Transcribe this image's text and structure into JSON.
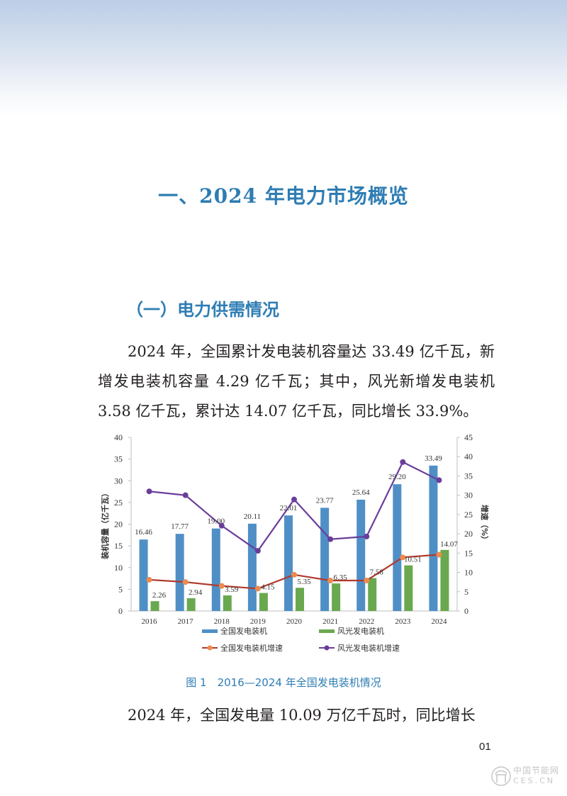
{
  "chapter": {
    "title": "一、2024 年电力市场概览"
  },
  "section": {
    "title": "（一）电力供需情况"
  },
  "paragraphs": [
    "2024 年，全国累计发电装机容量达 33.49 亿千瓦，新增发电装机容量 4.29 亿千瓦；其中，风光新增发电装机 3.58 亿千瓦，累计达 14.07 亿千瓦，同比增长 33.9%。",
    "2024 年，全国发电量 10.09 万亿千瓦时，同比增长"
  ],
  "figure": {
    "caption": "图 1　2016—2024 年全国发电装机情况"
  },
  "page": {
    "number": "01"
  },
  "watermark": {
    "line1": "中国节能网",
    "line2": "CES.CN"
  },
  "colors": {
    "accent": "#2e7db3",
    "bar_total": "#4f8fc6",
    "bar_wind_solar": "#6aa84f",
    "line_total_growth": "#b03a2e",
    "marker_total_growth": "#ed8b4f",
    "line_wind_solar_growth": "#6a3d9a"
  },
  "chart_data": {
    "type": "bar",
    "title": "2016—2024 年全国发电装机情况",
    "categories": [
      "2016",
      "2017",
      "2018",
      "2019",
      "2020",
      "2021",
      "2022",
      "2023",
      "2024"
    ],
    "ylabel": "装机容量（亿千瓦）",
    "ylabel_right": "增速（%）",
    "ylim": [
      0,
      40
    ],
    "ylim_right": [
      0,
      45
    ],
    "yticks": [
      0,
      5,
      10,
      15,
      20,
      25,
      30,
      35,
      40
    ],
    "yticks_right": [
      0,
      5,
      10,
      15,
      20,
      25,
      30,
      35,
      40,
      45
    ],
    "grid": false,
    "legend_position": "bottom",
    "series": [
      {
        "name": "全国发电装机",
        "type": "bar",
        "axis": "left",
        "values": [
          16.46,
          17.77,
          19.0,
          20.11,
          22.01,
          23.77,
          25.64,
          29.2,
          33.49
        ]
      },
      {
        "name": "风光发电装机",
        "type": "bar",
        "axis": "left",
        "values": [
          2.26,
          2.94,
          3.59,
          4.15,
          5.35,
          6.35,
          7.58,
          10.51,
          14.07
        ]
      },
      {
        "name": "全国发电装机增速",
        "type": "line",
        "axis": "right",
        "values": [
          8.1,
          7.5,
          6.5,
          5.8,
          9.4,
          7.9,
          7.9,
          13.9,
          14.6
        ]
      },
      {
        "name": "风光发电装机增速",
        "type": "line",
        "axis": "right",
        "values": [
          31.0,
          30.0,
          22.1,
          15.6,
          28.9,
          18.6,
          19.3,
          38.6,
          33.9
        ]
      }
    ],
    "labels_total": [
      "16.46",
      "17.77",
      "19.00",
      "20.11",
      "22.01",
      "23.77",
      "25.64",
      "29.20",
      "33.49"
    ],
    "labels_wind_solar": [
      "2.26",
      "2.94",
      "3.59",
      "4.15",
      "5.35",
      "6.35",
      "7.58",
      "10.51",
      "14.07"
    ]
  }
}
